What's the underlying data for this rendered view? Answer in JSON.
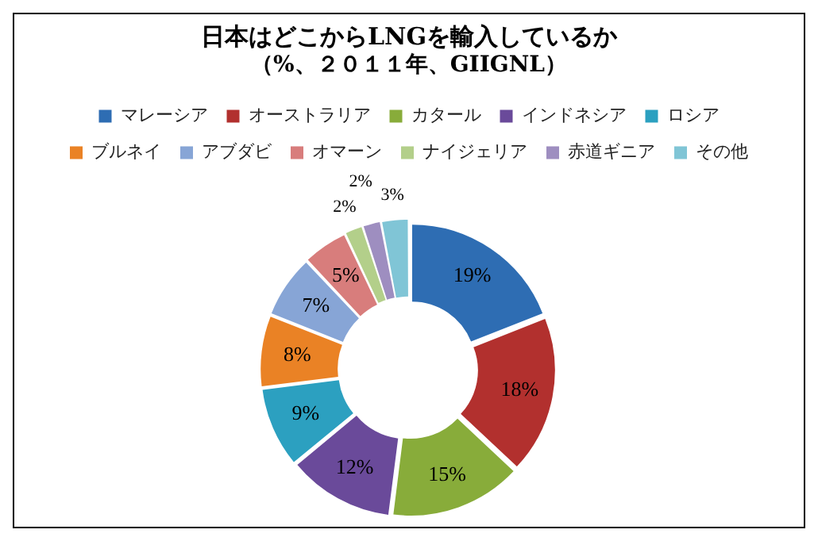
{
  "chart_data": {
    "type": "donut",
    "title": "日本はどこからLNGを輸入しているか",
    "subtitle": "（%、２０１１年、GIIGNL）",
    "categories": [
      "マレーシア",
      "オーストラリア",
      "カタール",
      "インドネシア",
      "ロシア",
      "ブルネイ",
      "アブダビ",
      "オマーン",
      "ナイジェリア",
      "赤道ギニア",
      "その他"
    ],
    "values": [
      19,
      18,
      15,
      12,
      9,
      8,
      7,
      5,
      2,
      2,
      3
    ],
    "colors": [
      "#2e6db3",
      "#b2302e",
      "#88ac3a",
      "#6a4a9a",
      "#2ca0c0",
      "#ea8225",
      "#87a5d6",
      "#d87d7c",
      "#b3cf8a",
      "#9e8ec0",
      "#80c5d6"
    ],
    "value_labels": [
      "19%",
      "18%",
      "15%",
      "12%",
      "9%",
      "8%",
      "7%",
      "5%",
      "2%",
      "2%",
      "3%"
    ],
    "legend": "top"
  }
}
